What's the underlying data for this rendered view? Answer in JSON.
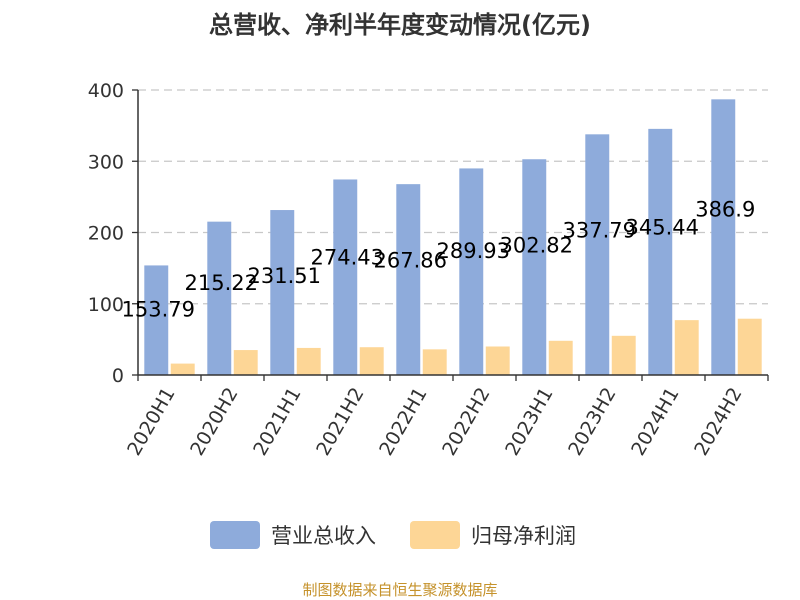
{
  "chart_data": {
    "type": "bar",
    "title": "总营收、净利半年度变动情况(亿元)",
    "categories": [
      "2020H1",
      "2020H2",
      "2021H1",
      "2021H2",
      "2022H1",
      "2022H2",
      "2023H1",
      "2023H2",
      "2024H1",
      "2024H2"
    ],
    "series": [
      {
        "name": "营业总收入",
        "color": "#8eabdb",
        "values": [
          153.79,
          215.22,
          231.51,
          274.43,
          267.86,
          289.93,
          302.82,
          337.79,
          345.44,
          386.9
        ],
        "labels": [
          "153.79",
          "215.22",
          "231.51",
          "274.43",
          "267.86",
          "289.93",
          "302.82",
          "337.79",
          "345.44",
          "386.9"
        ]
      },
      {
        "name": "归母净利润",
        "color": "#fdd696",
        "values": [
          16,
          35,
          38,
          39,
          36,
          40,
          48,
          55,
          77,
          79
        ]
      }
    ],
    "yticks": [
      "0",
      "100",
      "200",
      "300",
      "400"
    ],
    "ylim": [
      0,
      400
    ],
    "grid": true,
    "legend_position": "bottom",
    "source": "制图数据来自恒生聚源数据库"
  }
}
